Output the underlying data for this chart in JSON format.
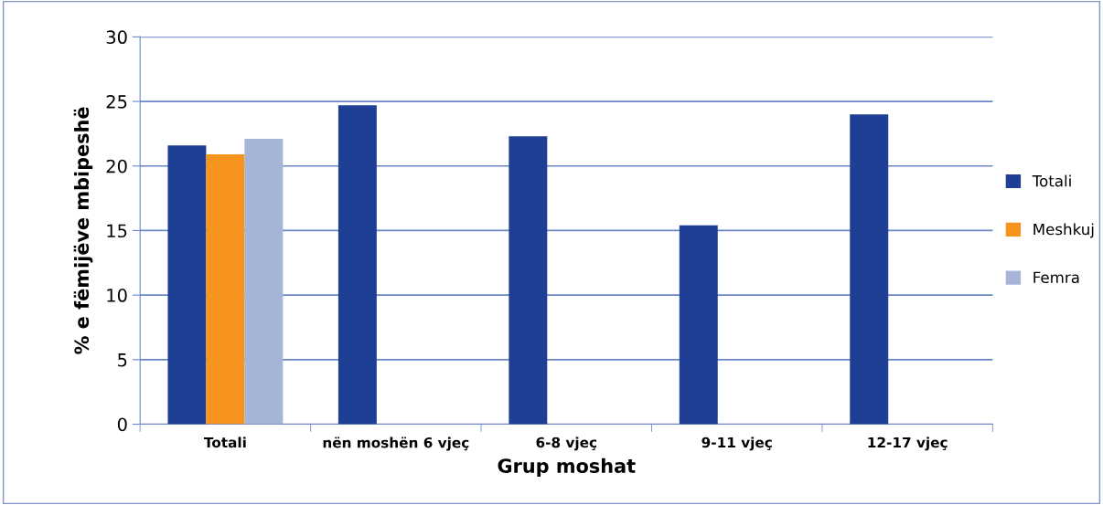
{
  "chart_data": {
    "type": "bar",
    "xlabel": "Grup moshat",
    "ylabel": "% e fëmijëve mbipeshë",
    "categories": [
      "Totali",
      "nën moshën 6 vjeç",
      "6-8 vjeç",
      "9-11 vjeç",
      "12-17 vjeç"
    ],
    "series": [
      {
        "name": "Totali",
        "color": "#1f3f94",
        "values": [
          21.6,
          24.7,
          22.3,
          15.4,
          24.0
        ]
      },
      {
        "name": "Meshkuj",
        "color": "#f7941d",
        "values": [
          20.9,
          null,
          null,
          null,
          null
        ]
      },
      {
        "name": "Femra",
        "color": "#a6b4d8",
        "values": [
          22.1,
          null,
          null,
          null,
          null
        ]
      }
    ],
    "ylim": [
      0,
      30
    ],
    "yticks": [
      0,
      5,
      10,
      15,
      20,
      25,
      30
    ],
    "grid": "y",
    "legend": "right"
  }
}
